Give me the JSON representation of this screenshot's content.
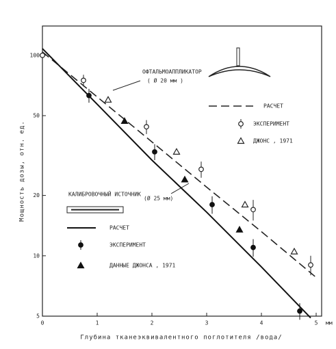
{
  "chart_data": {
    "type": "line",
    "y_label": "Мощность дозы, отн. ед.",
    "x_label": "Глубина тканеэквивалентного поглотителя /вода/",
    "x_unit": "мм",
    "annotations": [
      "ОФТАЛЬМОАППЛИКАТОР",
      "( Ø 20 мм )",
      "КАЛИБРОВОЧНЫЙ ИСТОЧНИК",
      "(Ø 25 мм)"
    ],
    "xlim": [
      0,
      5.1
    ],
    "xticks": [
      0,
      1,
      2,
      3,
      4,
      5
    ],
    "ylim": [
      5,
      140
    ],
    "yticks": [
      5,
      10,
      20,
      50,
      100
    ],
    "log_y": true,
    "series": [
      {
        "name": "РАСЧЕТ",
        "style": "dashed",
        "color": "#222",
        "x": [
          0,
          1,
          2,
          3,
          4,
          5
        ],
        "values": [
          104,
          62,
          37,
          22,
          13.2,
          7.8
        ]
      },
      {
        "name": "ЭКСПЕРИМЕНТ",
        "style": "open-circle",
        "color": "#222",
        "x": [
          0,
          0.75,
          1.9,
          2.9,
          3.85,
          4.9
        ],
        "values": [
          100,
          75,
          44,
          27,
          17,
          9
        ],
        "errors": [
          null,
          5,
          3.5,
          2.5,
          2,
          1
        ]
      },
      {
        "name": "ДЖОНС , 1971",
        "style": "open-triangle",
        "color": "#222",
        "x": [
          1.2,
          2.45,
          3.7,
          4.6
        ],
        "values": [
          60,
          33,
          18,
          10.5
        ]
      },
      {
        "name": "РАСЧЕТ",
        "style": "solid",
        "color": "#111",
        "x": [
          0,
          1,
          2,
          3,
          4,
          4.9
        ],
        "values": [
          108,
          57,
          30,
          16.5,
          8.8,
          4.9
        ]
      },
      {
        "name": "ЭКСПЕРИМЕНТ",
        "style": "filled-circle",
        "color": "#111",
        "x": [
          0.85,
          2.05,
          3.1,
          3.85,
          4.7
        ],
        "values": [
          63,
          33,
          18,
          11,
          5.3
        ],
        "errors": [
          5,
          3,
          1.8,
          1.1,
          0.5
        ]
      },
      {
        "name": "ДАННЫЕ ДЖОНСА , 1971",
        "style": "filled-triangle",
        "color": "#111",
        "x": [
          1.5,
          2.6,
          3.6
        ],
        "values": [
          47,
          24,
          13.5
        ]
      }
    ]
  }
}
